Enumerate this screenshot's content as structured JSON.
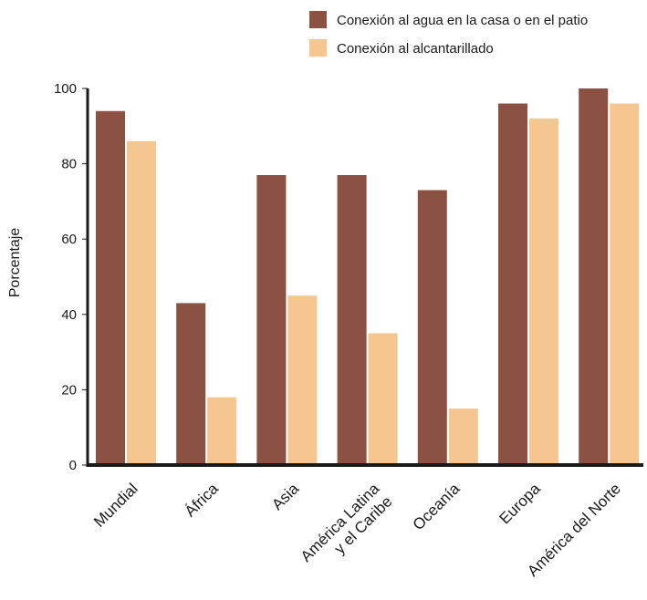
{
  "chart_data": {
    "type": "bar",
    "title": "",
    "xlabel": "",
    "ylabel": "Porcentaje",
    "ylim": [
      0,
      100
    ],
    "yticks": [
      0,
      20,
      40,
      60,
      80,
      100
    ],
    "grid": false,
    "legend_position": "top-right",
    "categories": [
      "Mundial",
      "África",
      "Asia",
      "América Latina y el Caribe",
      "Oceanía",
      "Europa",
      "América del Norte"
    ],
    "category_label_lines": [
      [
        "Mundial"
      ],
      [
        "África"
      ],
      [
        "Asia"
      ],
      [
        "América Latina",
        "y el Caribe"
      ],
      [
        "Oceanía"
      ],
      [
        "Europa"
      ],
      [
        "América del Norte"
      ]
    ],
    "series": [
      {
        "name": "Conexión al agua en la casa o en el patio",
        "color": "#8b5243",
        "values": [
          94,
          43,
          77,
          77,
          73,
          96,
          100
        ]
      },
      {
        "name": "Conexión al alcantarillado",
        "color": "#f5c690",
        "values": [
          86,
          18,
          45,
          35,
          15,
          92,
          96
        ]
      }
    ]
  }
}
